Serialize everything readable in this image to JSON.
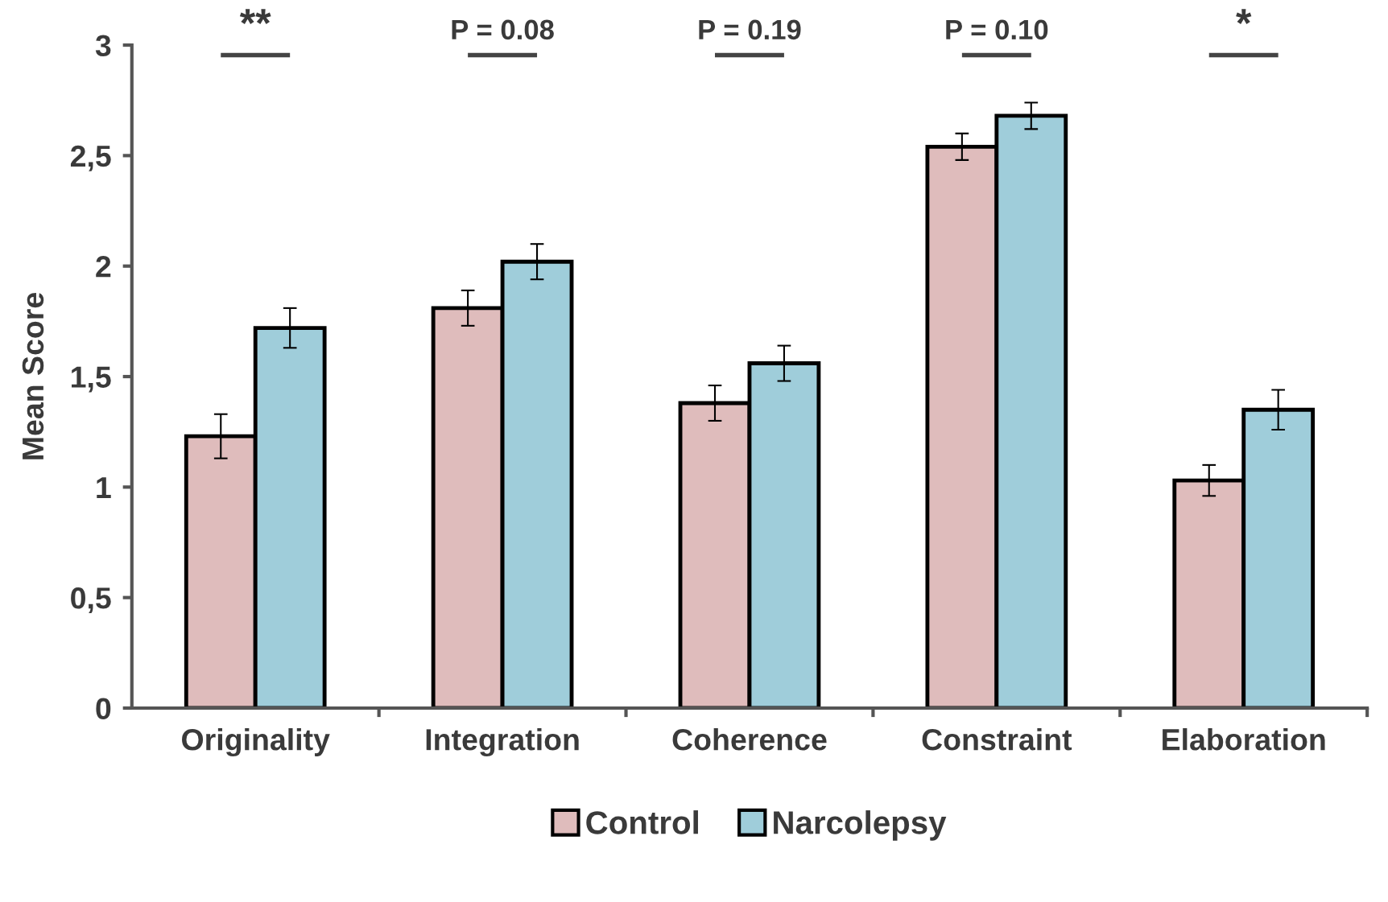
{
  "chart_data": {
    "type": "bar",
    "ylabel": "Mean Score",
    "categories": [
      "Originality",
      "Integration",
      "Coherence",
      "Constraint",
      "Elaboration"
    ],
    "series": [
      {
        "name": "Control",
        "color": "#dfbcbc",
        "values": [
          1.23,
          1.81,
          1.38,
          2.54,
          1.03
        ],
        "errors": [
          0.1,
          0.08,
          0.08,
          0.06,
          0.07
        ]
      },
      {
        "name": "Narcolepsy",
        "color": "#9fcdda",
        "values": [
          1.72,
          2.02,
          1.56,
          2.68,
          1.35
        ],
        "errors": [
          0.09,
          0.08,
          0.08,
          0.06,
          0.09
        ]
      }
    ],
    "ylim": [
      0,
      3
    ],
    "yticks": [
      0,
      {
        "value": 0.5,
        "label": "0,5"
      },
      1,
      {
        "value": 1.5,
        "label": "1,5"
      },
      2,
      {
        "value": 2.5,
        "label": "2,5"
      },
      3
    ],
    "annotations": [
      "**",
      "P = 0.08",
      "P = 0.19",
      "P = 0.10",
      "*"
    ],
    "grid": false,
    "legend": "bottom"
  }
}
